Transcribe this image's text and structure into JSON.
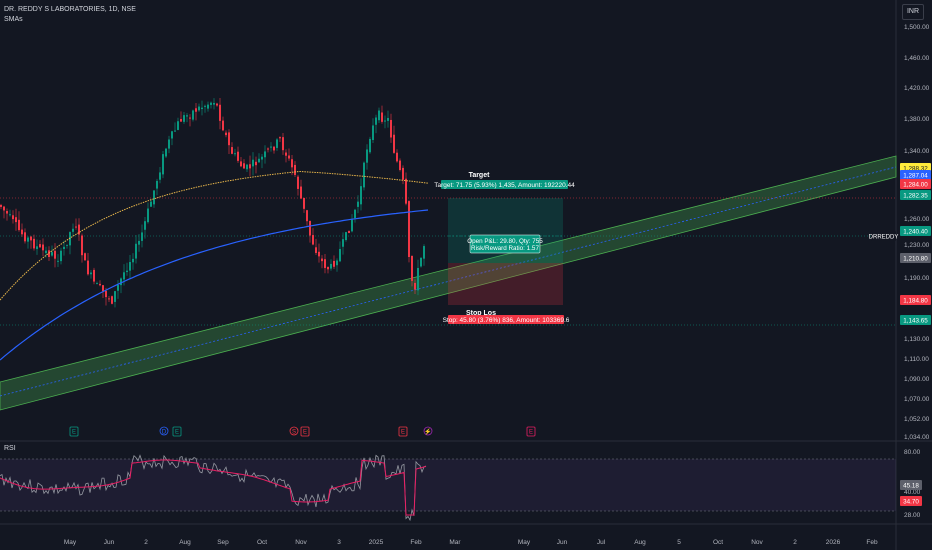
{
  "symbol": {
    "title": "DR. REDDY S LABORATORIES, 1D, NSE",
    "indicator": "SMAs"
  },
  "currency": "INR",
  "ticker_tag": "DRREDDY",
  "price_axis": [
    "1,500.00",
    "1,460.00",
    "1,420.00",
    "1,380.00",
    "1,340.00",
    "1,260.00",
    "1,230.00",
    "1,190.00",
    "1,170.00",
    "1,150.00",
    "1,130.00",
    "1,110.00",
    "1,090.00",
    "1,070.00",
    "1,052.00",
    "1,034.00"
  ],
  "price_badges": [
    {
      "text": "1,288.32",
      "color": "#ffeb3b",
      "fg": "#131722"
    },
    {
      "text": "1,287.04",
      "color": "#2962ff",
      "fg": "#ffffff"
    },
    {
      "text": "1,284.00",
      "color": "#f23645",
      "fg": "#ffffff"
    },
    {
      "text": "1,282.35",
      "color": "#089981",
      "fg": "#ffffff"
    },
    {
      "text": "1,240.40",
      "color": "#089981",
      "fg": "#ffffff"
    },
    {
      "text": "1,210.80",
      "color": "#5d606b",
      "fg": "#ffffff"
    },
    {
      "text": "1,184.80",
      "color": "#f23645",
      "fg": "#ffffff"
    },
    {
      "text": "1,143.65",
      "color": "#089981",
      "fg": "#ffffff"
    }
  ],
  "time_axis": [
    "May",
    "Jun",
    "2",
    "Aug",
    "Sep",
    "Oct",
    "Nov",
    "3",
    "2025",
    "Feb",
    "Mar",
    "May",
    "Jun",
    "Jul",
    "Aug",
    "5",
    "Oct",
    "Nov",
    "2",
    "2026",
    "Feb"
  ],
  "position": {
    "target_title": "Target",
    "target_text": "Target: 71.75 (5.93%) 1,435, Amount: 192220.44",
    "pnl_text": "Open P&L: 29.80, Qty: 755",
    "rr_text": "Risk/Reward Ratio: 1.57",
    "stop_title": "Stop Los",
    "stop_text": "Stop: 45.80 (3.76%) 836, Amount: 103369.6"
  },
  "events": [
    {
      "symbol": "E",
      "color": "#089981"
    },
    {
      "symbol": "D",
      "color": "#2962ff"
    },
    {
      "symbol": "E",
      "color": "#089981"
    },
    {
      "symbol": "S",
      "color": "#f23645"
    },
    {
      "symbol": "E",
      "color": "#f23645"
    },
    {
      "symbol": "E",
      "color": "#f23645"
    },
    {
      "symbol": "⚡",
      "color": "#9c27b0"
    },
    {
      "symbol": "E",
      "color": "#e91e63"
    }
  ],
  "rsi": {
    "label": "RSI",
    "axis": [
      "80.00",
      "40.00",
      "28.00"
    ],
    "badges": [
      {
        "text": "45.18",
        "color": "#5d606b"
      },
      {
        "text": "34.70",
        "color": "#f23645"
      }
    ]
  },
  "colors": {
    "up": "#089981",
    "down": "#f23645",
    "sma_fast": "#e8b64b",
    "sma_slow": "#2962ff",
    "channel": "#4caf50",
    "rsi": "#9598a1",
    "rsi_ma": "#e91e63"
  }
}
